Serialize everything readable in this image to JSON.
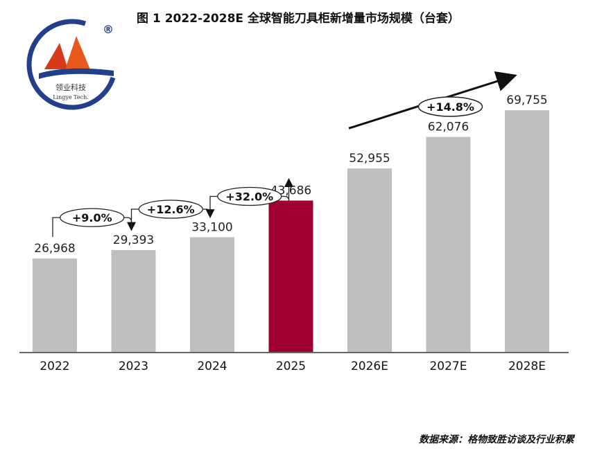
{
  "title": "图 1 2022-2028E 全球智能刀具柜新增量市场规模（台套）",
  "source": "数据来源：格物致胜访谈及行业积累",
  "logo": {
    "name_cn": "领业科技",
    "name_en": "Lingye Tech.",
    "registered_mark": "®"
  },
  "colors": {
    "bar_default": "#bfbfbf",
    "bar_highlight": "#a00030",
    "text": "#111111"
  },
  "chart_data": {
    "type": "bar",
    "categories": [
      "2022",
      "2023",
      "2024",
      "2025",
      "2026E",
      "2027E",
      "2028E"
    ],
    "values": [
      26968,
      29393,
      33100,
      43686,
      52955,
      62076,
      69755
    ],
    "value_labels": [
      "26,968",
      "29,393",
      "33,100",
      "43,686",
      "52,955",
      "62,076",
      "69,755"
    ],
    "highlight_category": "2025",
    "ylim": [
      0,
      80000
    ],
    "grid": false,
    "annotations": [
      {
        "label": "+9.0%",
        "from": "2022",
        "to": "2023"
      },
      {
        "label": "+12.6%",
        "from": "2023",
        "to": "2024"
      },
      {
        "label": "+32.0%",
        "from": "2024",
        "to": "2025"
      },
      {
        "label": "+14.8%",
        "from": "2026E",
        "to": "2028E",
        "style": "trend-arrow"
      }
    ]
  }
}
